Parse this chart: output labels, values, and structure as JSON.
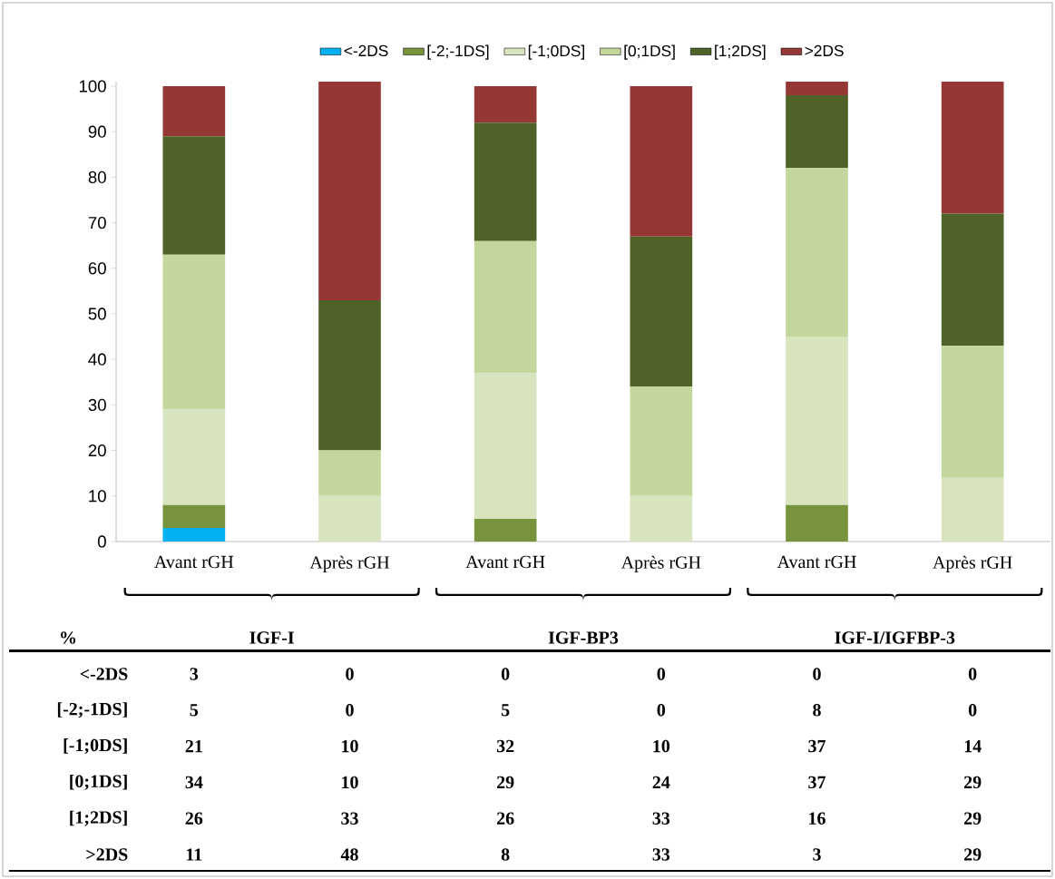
{
  "chart_data": {
    "type": "bar",
    "stacked": true,
    "categories": [
      "Avant rGH",
      "Après rGH",
      "Avant rGH",
      "Après rGH",
      "Avant rGH",
      "Après rGH"
    ],
    "series": [
      {
        "name": "<-2DS",
        "color": "#00b0f0",
        "values": [
          3,
          0,
          0,
          0,
          0,
          0
        ]
      },
      {
        "name": "[-2;-1DS]",
        "color": "#77933c",
        "values": [
          5,
          0,
          5,
          0,
          8,
          0
        ]
      },
      {
        "name": "[-1;0DS]",
        "color": "#d7e4bd",
        "values": [
          21,
          10,
          32,
          10,
          37,
          14
        ]
      },
      {
        "name": "[0;1DS]",
        "color": "#c3d69b",
        "values": [
          34,
          10,
          29,
          24,
          37,
          29
        ]
      },
      {
        "name": "[1;2DS]",
        "color": "#4f6228",
        "values": [
          26,
          33,
          26,
          33,
          16,
          29
        ]
      },
      {
        "name": ">2DS",
        "color": "#953735",
        "values": [
          11,
          48,
          8,
          33,
          3,
          29
        ]
      }
    ],
    "ylim": [
      0,
      101
    ],
    "yticks": [
      0,
      10,
      20,
      30,
      40,
      50,
      60,
      70,
      80,
      90,
      100
    ],
    "legend": "top",
    "data_labels": true,
    "annotations": [
      "%",
      "IGF-I",
      "IGF-BP3",
      "IGF-I/IGFBP-3"
    ]
  }
}
